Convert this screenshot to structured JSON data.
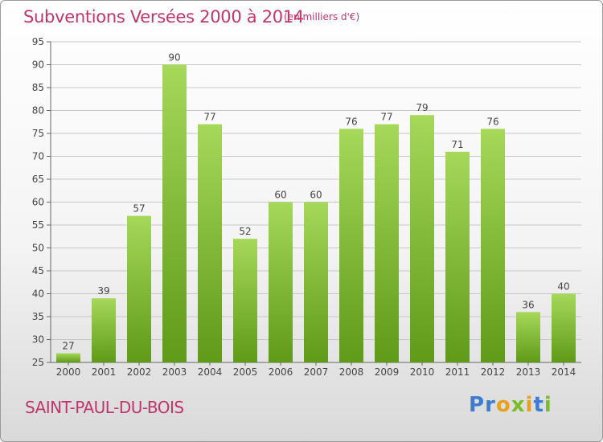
{
  "header": {
    "title": "Subventions Versées 2000 à 2014",
    "unit": "(en milliers d'€)"
  },
  "footer": {
    "town": "SAINT-PAUL-DU-BOIS",
    "logo": "Proxiti"
  },
  "colors": {
    "title": "#c0356b",
    "bar_top": "#a6d85a",
    "bar_bottom": "#5f9a18",
    "grid": "#c8c8c8",
    "logo_letters": [
      "#3a7dd1",
      "#3a7dd1",
      "#e8a020",
      "#7bbd28",
      "#e8a020",
      "#3a7dd1",
      "#7bbd28"
    ]
  },
  "chart_data": {
    "type": "bar",
    "categories": [
      "2000",
      "2001",
      "2002",
      "2003",
      "2004",
      "2005",
      "2006",
      "2007",
      "2008",
      "2009",
      "2010",
      "2011",
      "2012",
      "2013",
      "2014"
    ],
    "values": [
      27,
      39,
      57,
      90,
      77,
      52,
      60,
      60,
      76,
      77,
      79,
      71,
      76,
      36,
      40
    ],
    "title": "Subventions Versées 2000 à 2014",
    "xlabel": "",
    "ylabel": "",
    "ylim": [
      25,
      95
    ],
    "yticks": [
      25,
      30,
      35,
      40,
      45,
      50,
      55,
      60,
      65,
      70,
      75,
      80,
      85,
      90,
      95
    ],
    "grid": true,
    "legend": "none"
  }
}
